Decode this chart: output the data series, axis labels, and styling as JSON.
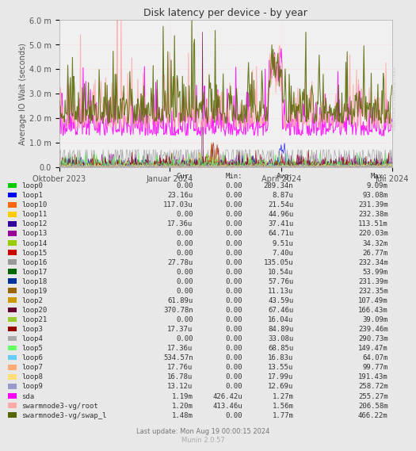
{
  "title": "Disk latency per device - by year",
  "ylabel": "Average IO Wait (seconds)",
  "background_color": "#e8e8e8",
  "plot_bg_color": "#f0f0f0",
  "ylim": [
    0,
    0.006
  ],
  "yticks": [
    0.0,
    0.001,
    0.002,
    0.003,
    0.004,
    0.005,
    0.006
  ],
  "ytick_labels": [
    "0.0",
    "1.0 m",
    "2.0 m",
    "3.0 m",
    "4.0 m",
    "5.0 m",
    "6.0 m"
  ],
  "xtick_labels": [
    "Oktober 2023",
    "Januar 2024",
    "April 2024",
    "Juli 2024"
  ],
  "xtick_positions": [
    0.0,
    0.333,
    0.667,
    1.0
  ],
  "watermark": "RRDTOOL / TOBI OETIKER",
  "footer": "Last update: Mon Aug 19 00:00:15 2024",
  "munin_version": "Munin 2.0.57",
  "legend": [
    {
      "label": "loop0",
      "color": "#00cc00"
    },
    {
      "label": "loop1",
      "color": "#0000ff"
    },
    {
      "label": "loop10",
      "color": "#ff6600"
    },
    {
      "label": "loop11",
      "color": "#ffcc00"
    },
    {
      "label": "loop12",
      "color": "#330099"
    },
    {
      "label": "loop13",
      "color": "#990099"
    },
    {
      "label": "loop14",
      "color": "#99cc00"
    },
    {
      "label": "loop15",
      "color": "#cc0000"
    },
    {
      "label": "loop16",
      "color": "#999999"
    },
    {
      "label": "loop17",
      "color": "#006600"
    },
    {
      "label": "loop18",
      "color": "#003399"
    },
    {
      "label": "loop19",
      "color": "#996600"
    },
    {
      "label": "loop2",
      "color": "#cc9900"
    },
    {
      "label": "loop20",
      "color": "#660033"
    },
    {
      "label": "loop21",
      "color": "#99cc33"
    },
    {
      "label": "loop3",
      "color": "#990000"
    },
    {
      "label": "loop4",
      "color": "#aaaaaa"
    },
    {
      "label": "loop5",
      "color": "#66ff66"
    },
    {
      "label": "loop6",
      "color": "#66ccff"
    },
    {
      "label": "loop7",
      "color": "#ffaa77"
    },
    {
      "label": "loop8",
      "color": "#ffdd77"
    },
    {
      "label": "loop9",
      "color": "#9999cc"
    },
    {
      "label": "sda",
      "color": "#ff00ff"
    },
    {
      "label": "swarmnode3-vg/root",
      "color": "#ffaaaa"
    },
    {
      "label": "swarmnode3-vg/swap_l",
      "color": "#556600"
    }
  ],
  "cur_values": [
    "0.00",
    "23.16u",
    "117.03u",
    "0.00",
    "17.36u",
    "0.00",
    "0.00",
    "0.00",
    "27.78u",
    "0.00",
    "0.00",
    "0.00",
    "61.89u",
    "370.78n",
    "0.00",
    "17.37u",
    "0.00",
    "17.36u",
    "534.57n",
    "17.76u",
    "16.78u",
    "13.12u",
    "1.19m",
    "1.20m",
    "1.48m"
  ],
  "min_values": [
    "0.00",
    "0.00",
    "0.00",
    "0.00",
    "0.00",
    "0.00",
    "0.00",
    "0.00",
    "0.00",
    "0.00",
    "0.00",
    "0.00",
    "0.00",
    "0.00",
    "0.00",
    "0.00",
    "0.00",
    "0.00",
    "0.00",
    "0.00",
    "0.00",
    "0.00",
    "426.42u",
    "413.46u",
    "0.00"
  ],
  "avg_values": [
    "289.34n",
    "8.87u",
    "21.54u",
    "44.96u",
    "37.41u",
    "64.71u",
    "9.51u",
    "7.40u",
    "135.05u",
    "10.54u",
    "57.76u",
    "11.13u",
    "43.59u",
    "67.46u",
    "16.04u",
    "84.89u",
    "33.08u",
    "68.85u",
    "16.83u",
    "13.55u",
    "17.99u",
    "12.69u",
    "1.27m",
    "1.56m",
    "1.77m"
  ],
  "max_values": [
    "9.09m",
    "93.08m",
    "231.39m",
    "232.38m",
    "113.51m",
    "220.03m",
    "34.32m",
    "26.77m",
    "232.34m",
    "53.99m",
    "231.39m",
    "232.35m",
    "107.49m",
    "166.43m",
    "39.09m",
    "239.46m",
    "290.73m",
    "149.47m",
    "64.07m",
    "99.77m",
    "191.43m",
    "258.72m",
    "255.27m",
    "206.58m",
    "466.22m"
  ]
}
